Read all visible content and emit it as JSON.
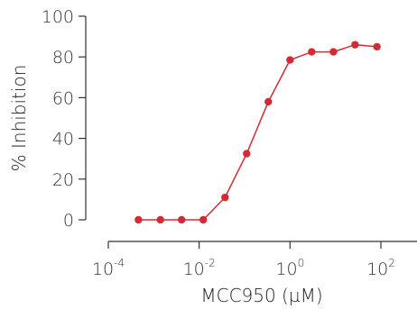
{
  "chart_data": {
    "type": "scatter",
    "title": "",
    "xlabel": "MCC950 (µM)",
    "ylabel": "% Inhibition",
    "x_scale": "log",
    "xlim": [
      0.0001,
      1000
    ],
    "ylim": [
      0,
      100
    ],
    "x_ticks": [
      {
        "value": 0.0001,
        "base": "10",
        "exp": "-4"
      },
      {
        "value": 0.01,
        "base": "10",
        "exp": "-2"
      },
      {
        "value": 1,
        "base": "10",
        "exp": "0"
      },
      {
        "value": 100,
        "base": "10",
        "exp": "2"
      }
    ],
    "y_ticks": [
      {
        "value": 0,
        "label": "0"
      },
      {
        "value": 20,
        "label": "20"
      },
      {
        "value": 40,
        "label": "40"
      },
      {
        "value": 60,
        "label": "60"
      },
      {
        "value": 80,
        "label": "80"
      },
      {
        "value": 100,
        "label": "100"
      }
    ],
    "grid": false,
    "color": "#d42a34",
    "series": [
      {
        "x": [
          0.00046,
          0.0014,
          0.0041,
          0.0123,
          0.037,
          0.111,
          0.333,
          1.0,
          3.0,
          9.0,
          27.0,
          82.0
        ],
        "y": [
          0,
          0,
          0,
          0,
          11,
          32.5,
          58,
          78.5,
          82.5,
          82.5,
          86,
          85
        ]
      }
    ]
  }
}
